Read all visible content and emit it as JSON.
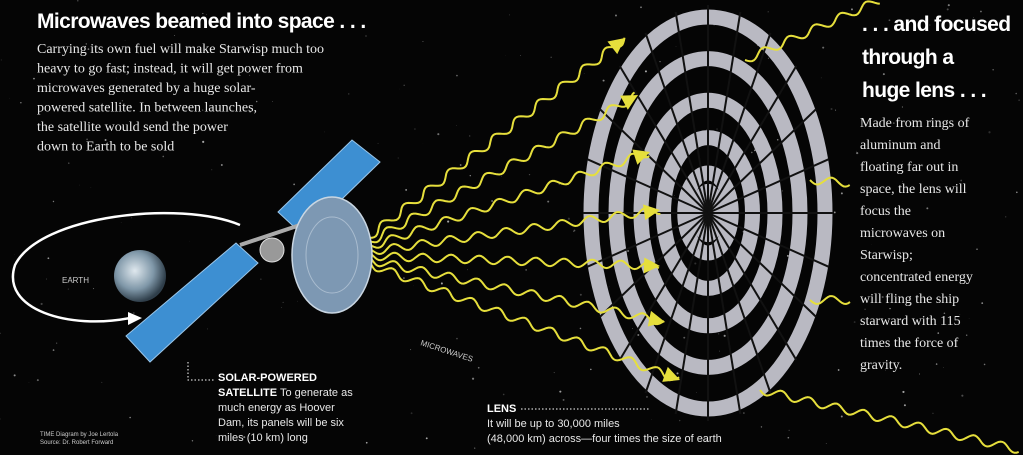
{
  "heading_left": "Microwaves beamed into space . . .",
  "body_left": [
    "Carrying its own fuel will make Starwisp much too",
    "heavy to go fast; instead, it will get power from",
    "microwaves generated by a huge solar-",
    "powered satellite. In between launches,",
    "the satellite would send the power",
    "down to Earth to be sold"
  ],
  "heading_right": [
    ". . . and focused",
    "through a",
    "huge lens . . ."
  ],
  "body_right": [
    "Made from rings of",
    "aluminum and",
    "floating far out in",
    "space, the lens will",
    "focus the",
    "microwaves on",
    "Starwisp;",
    "concentrated energy",
    "will fling the ship",
    "starward with 115",
    "times the force of",
    "gravity."
  ],
  "earth_label": "EARTH",
  "beam_label": "MICROWAVES",
  "satellite": {
    "title": [
      "SOLAR-POWERED",
      "SATELLITE"
    ],
    "text": [
      "To generate as",
      "much energy as Hoover",
      "Dam, its panels will be six",
      "miles (10 km) long"
    ]
  },
  "lens": {
    "title": "LENS",
    "text": [
      "It will be up to 30,000 miles",
      "(48,000 km) across—four times the size of earth"
    ]
  },
  "credit": [
    "TIME Diagram by Joe Lertola",
    "Source: Dr. Robert Forward"
  ]
}
